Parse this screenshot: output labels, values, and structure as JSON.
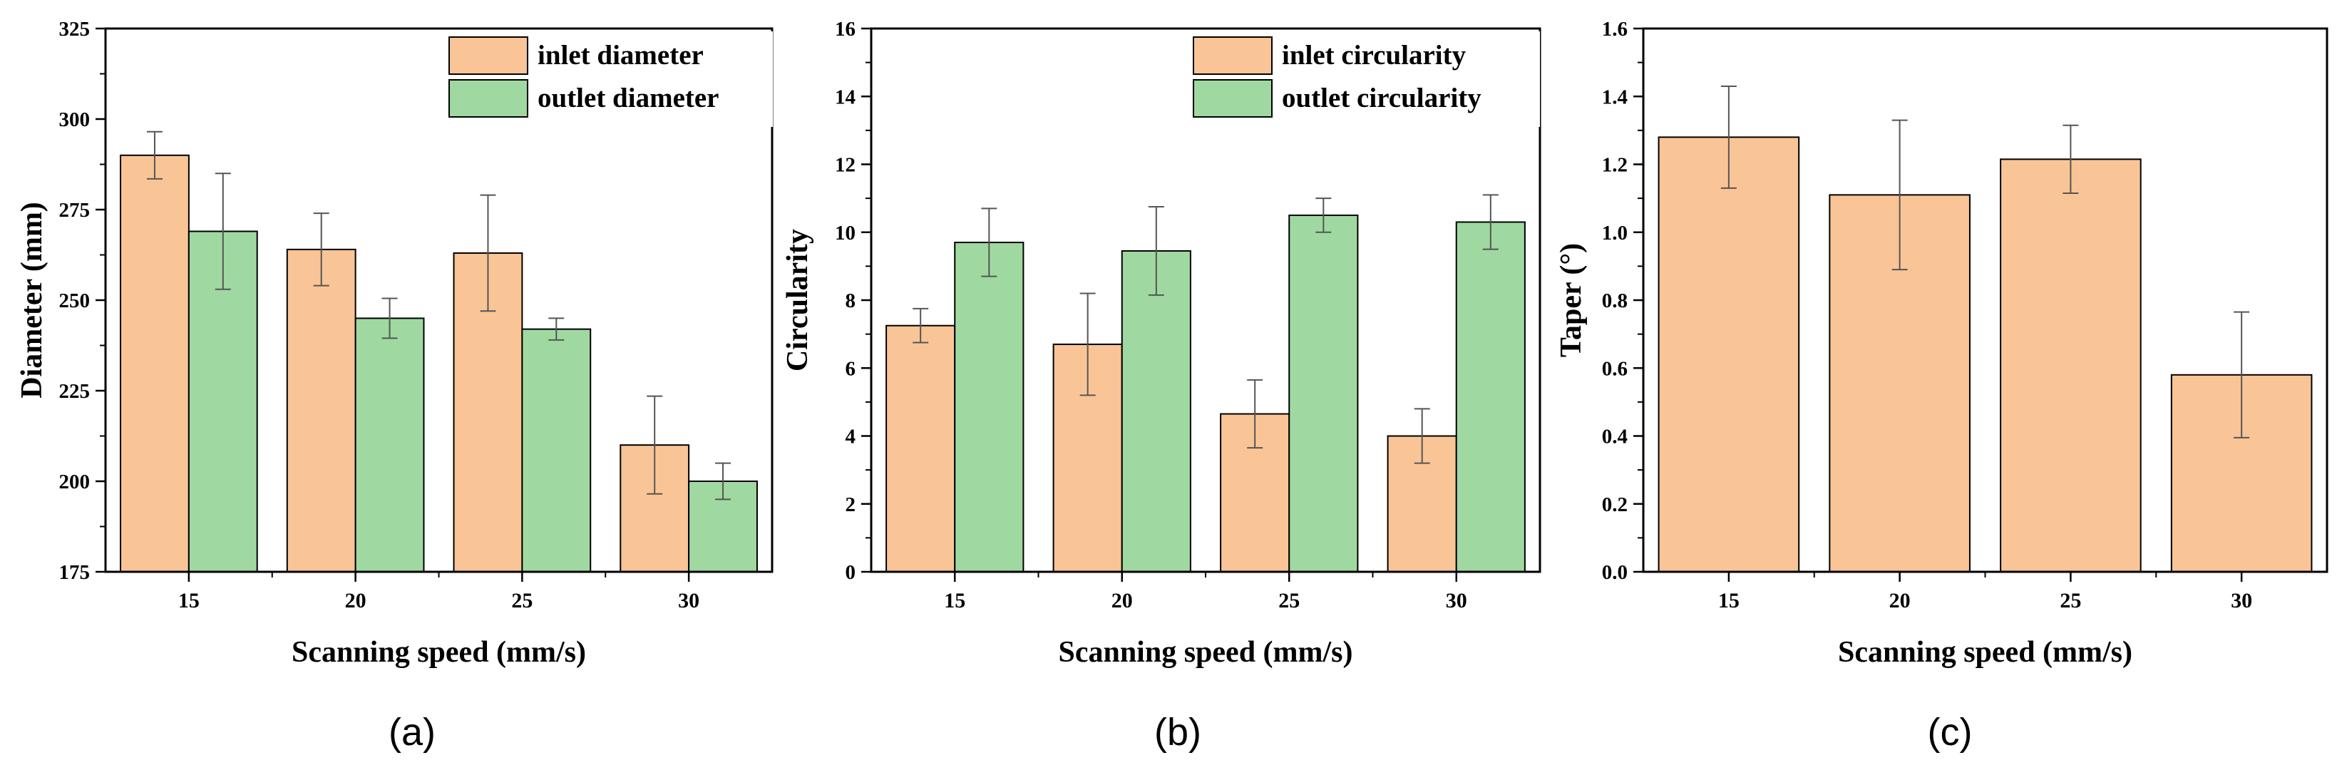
{
  "colors": {
    "inlet": "#F9C597",
    "outlet": "#9FD9A1",
    "axis": "#000000",
    "error_bar": "#555555"
  },
  "panel_labels": [
    "(a)",
    "(b)",
    "(c)"
  ],
  "chart_data": [
    {
      "type": "bar",
      "title": "",
      "xlabel": "Scanning speed (mm/s)",
      "ylabel": "Diameter (mm)",
      "categories": [
        "15",
        "20",
        "25",
        "30"
      ],
      "ylim": [
        175,
        325
      ],
      "yticks": [
        "175",
        "200",
        "225",
        "250",
        "275",
        "300",
        "325"
      ],
      "legend_position": "top-right",
      "series": [
        {
          "name": "inlet diameter",
          "color": "#F9C597",
          "values": [
            290,
            264,
            263,
            210
          ],
          "errors": [
            6.5,
            10,
            16,
            13.5
          ]
        },
        {
          "name": "outlet diameter",
          "color": "#9FD9A1",
          "values": [
            269,
            245,
            242,
            200
          ],
          "errors": [
            16,
            5.5,
            3,
            5
          ]
        }
      ]
    },
    {
      "type": "bar",
      "title": "",
      "xlabel": "Scanning speed (mm/s)",
      "ylabel": "Circularity",
      "categories": [
        "15",
        "20",
        "25",
        "30"
      ],
      "ylim": [
        0,
        16
      ],
      "yticks": [
        "0",
        "2",
        "4",
        "6",
        "8",
        "10",
        "12",
        "14",
        "16"
      ],
      "legend_position": "top-right",
      "series": [
        {
          "name": "inlet circularity",
          "color": "#F9C597",
          "values": [
            7.25,
            6.7,
            4.65,
            4.0
          ],
          "errors": [
            0.5,
            1.5,
            1.0,
            0.8
          ]
        },
        {
          "name": "outlet circularity",
          "color": "#9FD9A1",
          "values": [
            9.7,
            9.45,
            10.5,
            10.3
          ],
          "errors": [
            1.0,
            1.3,
            0.5,
            0.8
          ]
        }
      ]
    },
    {
      "type": "bar",
      "title": "",
      "xlabel": "Scanning speed (mm/s)",
      "ylabel": "Taper (°)",
      "categories": [
        "15",
        "20",
        "25",
        "30"
      ],
      "ylim": [
        0,
        1.6
      ],
      "yticks": [
        "0.0",
        "0.2",
        "0.4",
        "0.6",
        "0.8",
        "1.0",
        "1.2",
        "1.4",
        "1.6"
      ],
      "series": [
        {
          "name": "",
          "color": "#F9C597",
          "values": [
            1.28,
            1.11,
            1.215,
            0.58
          ],
          "errors": [
            0.15,
            0.22,
            0.1,
            0.185
          ]
        }
      ]
    }
  ]
}
